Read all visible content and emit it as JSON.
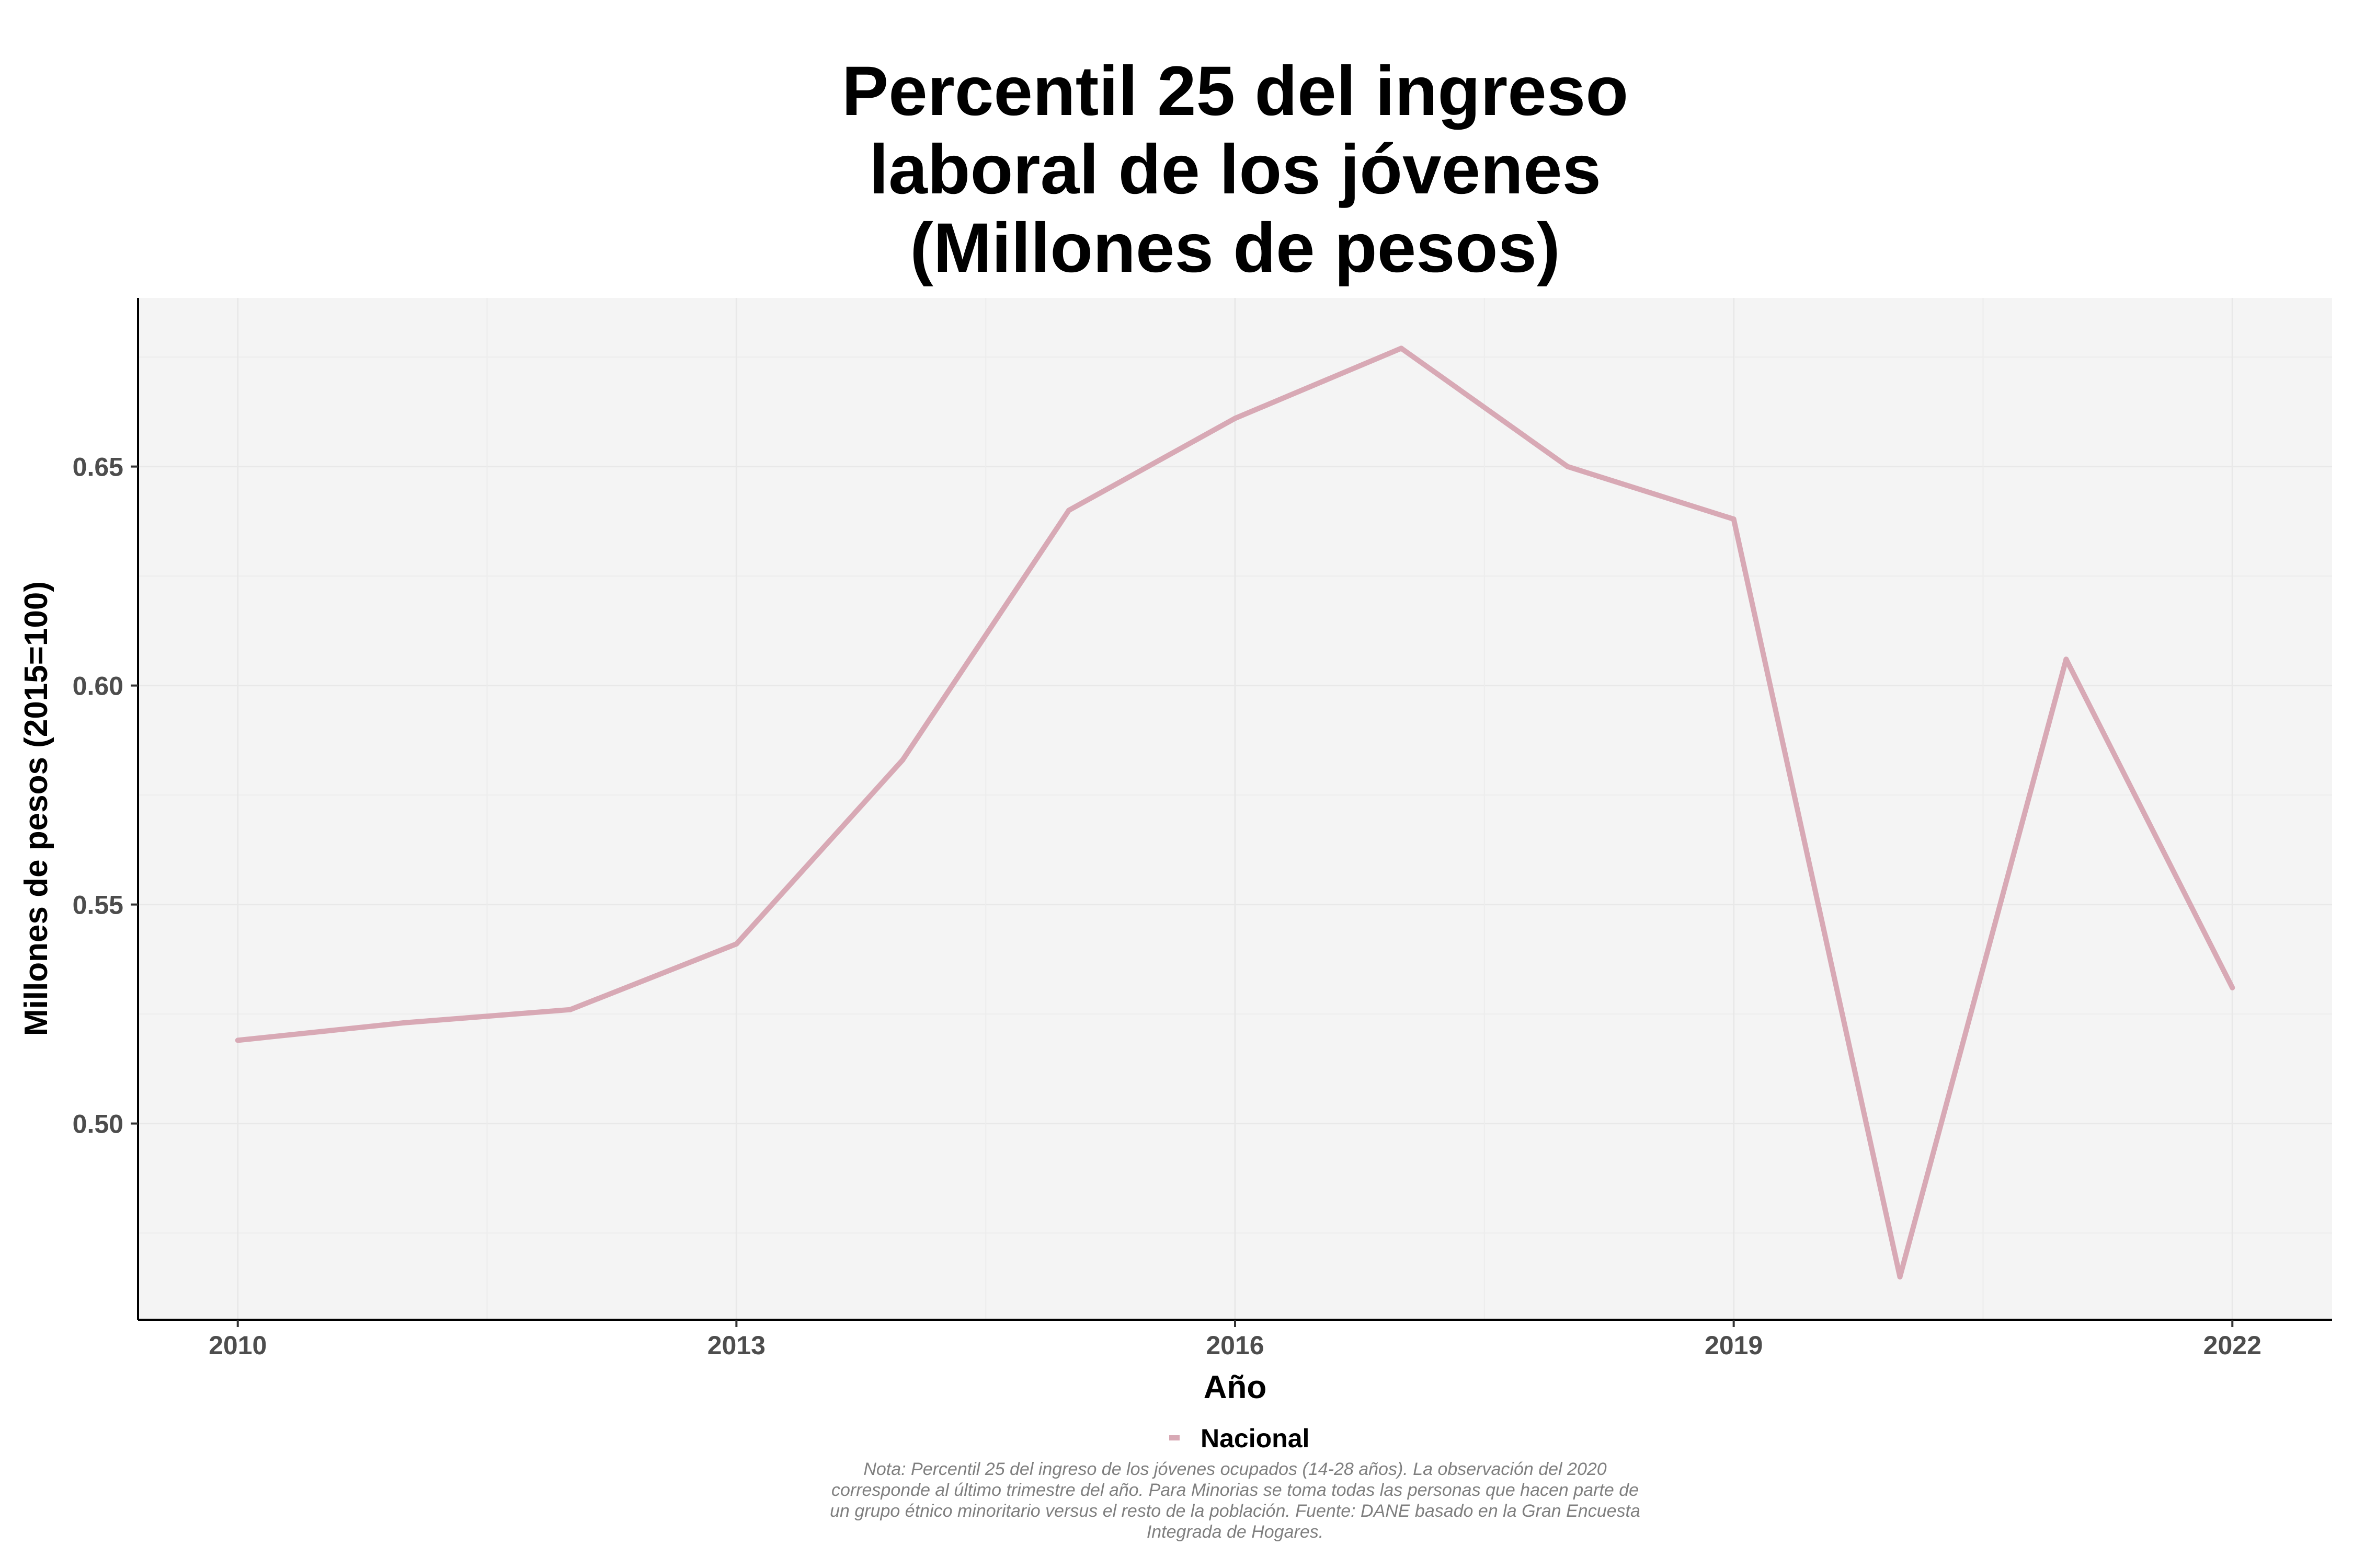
{
  "chart_data": {
    "type": "line",
    "title": [
      "Percentil 25 del ingreso",
      "laboral de los jóvenes",
      "(Millones de pesos)"
    ],
    "xlabel": "Año",
    "ylabel": "Millones de pesos (2015=100)",
    "x": [
      2010,
      2011,
      2012,
      2013,
      2014,
      2015,
      2016,
      2017,
      2018,
      2019,
      2020,
      2021,
      2022
    ],
    "series": [
      {
        "name": "Nacional",
        "color": "#d8a9b5",
        "values": [
          0.519,
          0.523,
          0.526,
          0.541,
          0.583,
          0.64,
          0.661,
          0.677,
          0.65,
          0.638,
          0.465,
          0.606,
          0.531
        ]
      }
    ],
    "xlim": [
      2009.4,
      2022.6
    ],
    "ylim": [
      0.4552,
      0.6885
    ],
    "x_ticks": [
      2010,
      2013,
      2016,
      2019,
      2022
    ],
    "x_tick_labels": [
      "2010",
      "2013",
      "2016",
      "2019",
      "2022"
    ],
    "y_ticks": [
      0.5,
      0.55,
      0.6,
      0.65
    ],
    "y_tick_labels": [
      "0.50",
      "0.55",
      "0.60",
      "0.65"
    ],
    "grid": true,
    "legend_position": "bottom",
    "note": [
      "Nota: Percentil 25 del ingreso de los jóvenes ocupados (14-28 años). La observación del 2020",
      "corresponde al último trimestre del año. Para Minorias se toma todas las personas que hacen parte de",
      "un grupo étnico minoritario versus el resto de la población. Fuente: DANE basado en la Gran Encuesta",
      "Integrada de Hogares."
    ]
  }
}
